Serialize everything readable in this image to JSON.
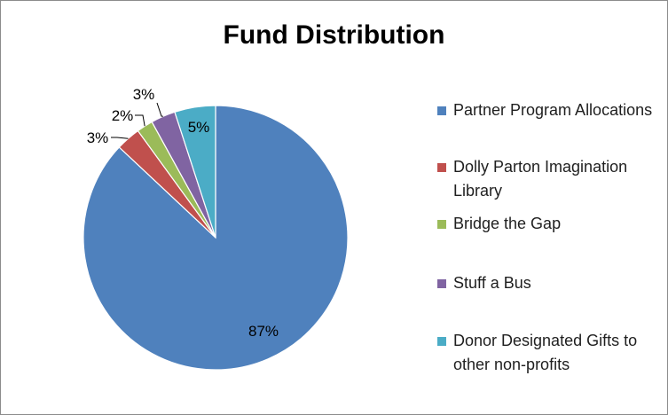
{
  "chart_data": {
    "type": "pie",
    "title": "Fund Distribution",
    "legend_position": "right",
    "slices": [
      {
        "label": "Partner Program Allocations",
        "value": 87,
        "data_label": "87%",
        "color": "#4f81bd"
      },
      {
        "label": "Dolly Parton Imagination Library",
        "value": 3,
        "data_label": "3%",
        "color": "#c0504d"
      },
      {
        "label": "Bridge the Gap",
        "value": 2,
        "data_label": "2%",
        "color": "#9bbb59"
      },
      {
        "label": "Stuff a Bus",
        "value": 3,
        "data_label": "3%",
        "color": "#8064a2"
      },
      {
        "label": "Donor Designated Gifts to other non-profits",
        "value": 5,
        "data_label": "5%",
        "color": "#4bacc6"
      }
    ]
  }
}
